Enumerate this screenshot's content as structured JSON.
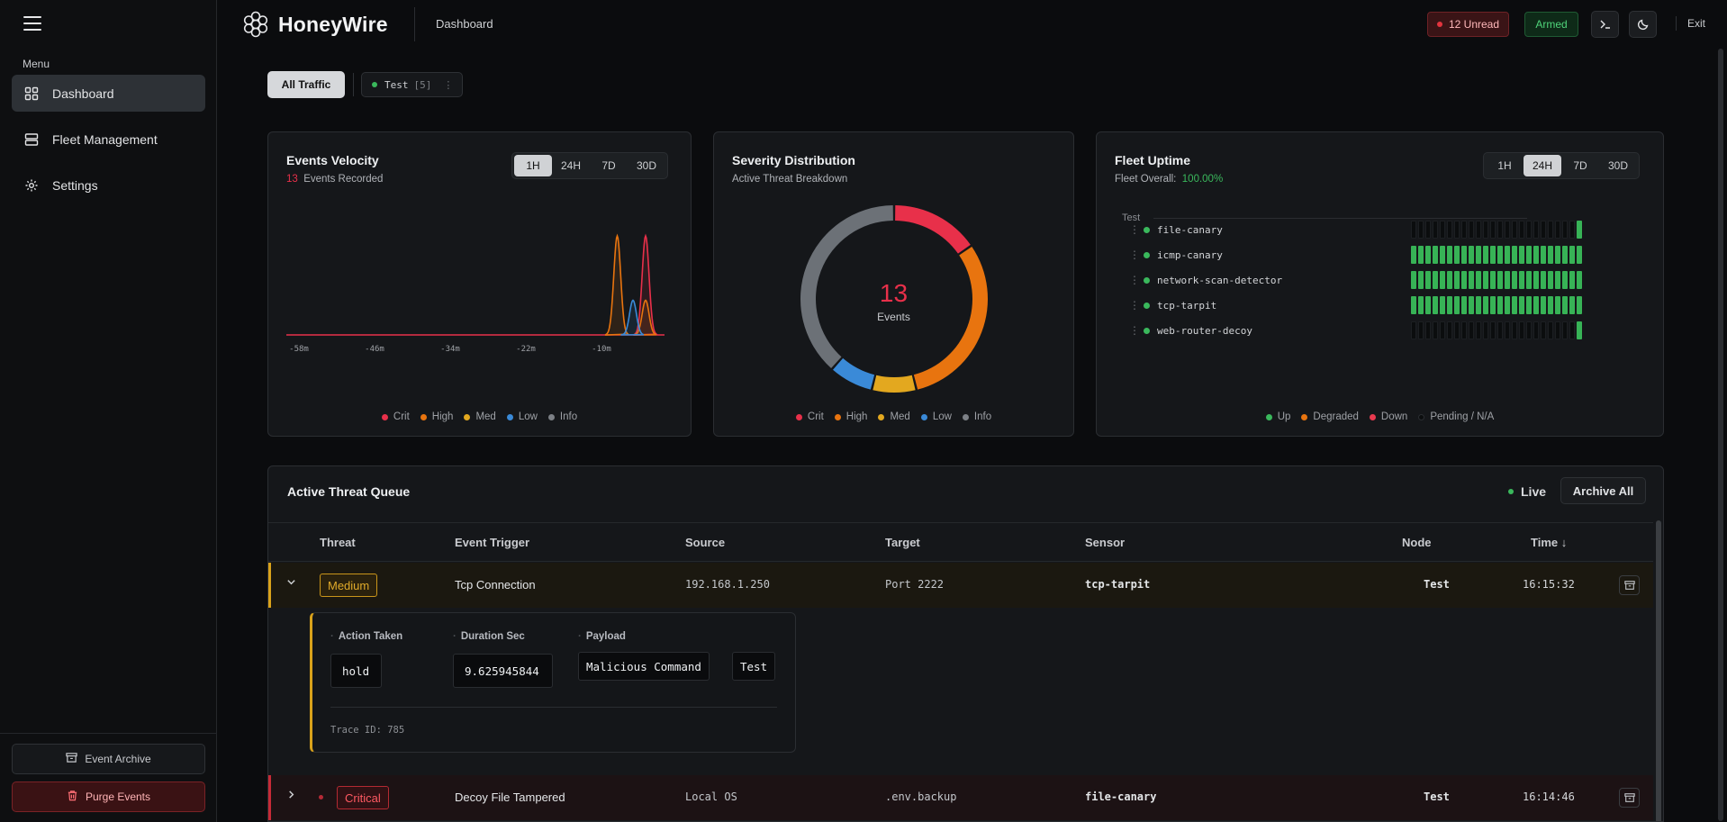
{
  "app": {
    "name": "HoneyWire",
    "breadcrumb": "Dashboard"
  },
  "sidebar": {
    "menu_label": "Menu",
    "items": [
      {
        "label": "Dashboard",
        "icon": "grid-icon",
        "active": true
      },
      {
        "label": "Fleet Management",
        "icon": "server-icon",
        "active": false
      },
      {
        "label": "Settings",
        "icon": "gear-icon",
        "active": false
      }
    ],
    "event_archive_label": "Event Archive",
    "purge_label": "Purge Events"
  },
  "topbar": {
    "unread_label": "12 Unread",
    "armed_label": "Armed",
    "exit_label": "Exit"
  },
  "filters": {
    "all_label": "All Traffic",
    "node_name": "Test",
    "node_count": "[5]",
    "more": "⋮"
  },
  "velocity": {
    "title": "Events Velocity",
    "count": "13",
    "count_suffix": "Events Recorded",
    "ranges": [
      "1H",
      "24H",
      "7D",
      "30D"
    ],
    "active_range": "1H"
  },
  "severity": {
    "title": "Severity Distribution",
    "subtitle": "Active Threat Breakdown",
    "center_value": "13",
    "center_label": "Events"
  },
  "uptime": {
    "title": "Fleet Uptime",
    "overall_label": "Fleet Overall:",
    "overall_value": "100.00%",
    "ranges": [
      "1H",
      "24H",
      "7D",
      "30D"
    ],
    "active_range": "24H",
    "group": "Test",
    "kebab": "⋮",
    "sensors": [
      {
        "name": "file-canary",
        "up_slots": 1
      },
      {
        "name": "icmp-canary",
        "up_slots": 24
      },
      {
        "name": "network-scan-detector",
        "up_slots": 24
      },
      {
        "name": "tcp-tarpit",
        "up_slots": 24
      },
      {
        "name": "web-router-decoy",
        "up_slots": 1
      }
    ],
    "legend": [
      {
        "label": "Up",
        "color": "#3ab85c"
      },
      {
        "label": "Degraded",
        "color": "#e8740f"
      },
      {
        "label": "Down",
        "color": "#e83a4f"
      },
      {
        "label": "Pending / N/A",
        "color": "#0b0d0e"
      }
    ]
  },
  "severity_legend": [
    {
      "label": "Crit",
      "color": "#e8304a"
    },
    {
      "label": "High",
      "color": "#e8740f"
    },
    {
      "label": "Med",
      "color": "#e3a81f"
    },
    {
      "label": "Low",
      "color": "#3a8ad8"
    },
    {
      "label": "Info",
      "color": "#7c8086"
    }
  ],
  "chart_data": [
    {
      "type": "area",
      "title": "Events Velocity",
      "x_ticks": [
        "-58m",
        "-46m",
        "-34m",
        "-22m",
        "-10m"
      ],
      "series": [
        {
          "name": "Crit",
          "color": "#e8304a",
          "peaks": [
            {
              "x_min_ago": -3,
              "height": 1.0
            }
          ]
        },
        {
          "name": "High",
          "color": "#e8740f",
          "peaks": [
            {
              "x_min_ago": -7.5,
              "height": 1.0
            },
            {
              "x_min_ago": -3,
              "height": 0.35
            }
          ]
        },
        {
          "name": "Low",
          "color": "#3a8ad8",
          "peaks": [
            {
              "x_min_ago": -5,
              "height": 0.35
            }
          ]
        }
      ]
    },
    {
      "type": "pie",
      "title": "Severity Distribution",
      "donut": true,
      "slices": [
        {
          "label": "Crit",
          "value": 2,
          "color": "#e8304a"
        },
        {
          "label": "High",
          "value": 4,
          "color": "#e8740f"
        },
        {
          "label": "Med",
          "value": 1,
          "color": "#e3a81f"
        },
        {
          "label": "Low",
          "value": 1,
          "color": "#3a8ad8"
        },
        {
          "label": "Info",
          "value": 5,
          "color": "#6c7177"
        }
      ]
    }
  ],
  "queue": {
    "title": "Active Threat Queue",
    "live_label": "Live",
    "archive_all_label": "Archive All",
    "columns": [
      "Threat",
      "Event Trigger",
      "Source",
      "Target",
      "Sensor",
      "Node",
      "Time ↓"
    ],
    "rows": [
      {
        "severity": "Medium",
        "trigger": "Tcp Connection",
        "source": "192.168.1.250",
        "target": "Port 2222",
        "sensor": "tcp-tarpit",
        "node": "Test",
        "time": "16:15:32",
        "expanded": true,
        "details": {
          "action_label": "Action Taken",
          "action_value": "hold",
          "duration_label": "Duration Sec",
          "duration_value": "9.625945844",
          "payload_label": "Payload",
          "payload_values": [
            "Malicious Command",
            "Test"
          ],
          "trace": "Trace ID: 785"
        }
      },
      {
        "severity": "Critical",
        "trigger": "Decoy File Tampered",
        "source": "Local OS",
        "target": ".env.backup",
        "sensor": "file-canary",
        "node": "Test",
        "time": "16:14:46",
        "expanded": false
      }
    ]
  }
}
